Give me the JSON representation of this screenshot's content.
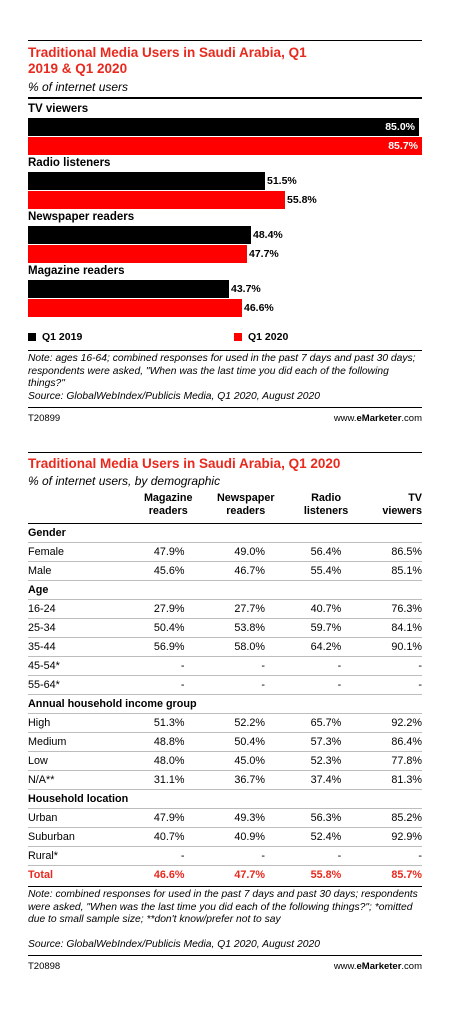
{
  "chart_data": [
    {
      "type": "bar",
      "title": "Traditional Media Users in Saudi Arabia, Q1 2019 & Q1 2020",
      "subtitle": "% of internet users",
      "categories": [
        "TV viewers",
        "Radio listeners",
        "Newspaper readers",
        "Magazine readers"
      ],
      "series": [
        {
          "name": "Q1 2019",
          "values": [
            85.0,
            51.5,
            48.4,
            43.7
          ],
          "labels": [
            "85.0%",
            "51.5%",
            "48.4%",
            "43.7%"
          ],
          "color": "#000000"
        },
        {
          "name": "Q1 2020",
          "values": [
            85.7,
            55.8,
            47.7,
            46.6
          ],
          "labels": [
            "85.7%",
            "55.8%",
            "47.7%",
            "46.6%"
          ],
          "color": "#ff0000"
        }
      ],
      "xlim": [
        0,
        85.7
      ],
      "legend": "bottom-left",
      "note": "Note: ages 16-64; combined responses for used in the past 7 days and past 30 days; respondents were asked, \"When was the last time you did each of the following things?\"",
      "source": "Source: GlobalWebIndex/Publicis Media, Q1 2020, August 2020",
      "id": "T20899",
      "brand_prefix": "www.",
      "brand_bold": "eMarketer",
      "brand_suffix": ".com"
    },
    {
      "type": "table",
      "title": "Traditional Media Users in Saudi Arabia, Q1 2020",
      "subtitle": "% of internet users, by demographic",
      "columns": [
        {
          "line1": "Magazine",
          "line2": "readers"
        },
        {
          "line1": "Newspaper",
          "line2": "readers"
        },
        {
          "line1": "Radio",
          "line2": "listeners"
        },
        {
          "line1": "TV",
          "line2": "viewers"
        }
      ],
      "rows": [
        {
          "label": "Gender",
          "group": true,
          "values": [
            "",
            "",
            "",
            ""
          ]
        },
        {
          "label": "Female",
          "values": [
            "47.9%",
            "49.0%",
            "56.4%",
            "86.5%"
          ]
        },
        {
          "label": "Male",
          "values": [
            "45.6%",
            "46.7%",
            "55.4%",
            "85.1%"
          ]
        },
        {
          "label": "Age",
          "group": true,
          "values": [
            "",
            "",
            "",
            ""
          ]
        },
        {
          "label": "16-24",
          "values": [
            "27.9%",
            "27.7%",
            "40.7%",
            "76.3%"
          ]
        },
        {
          "label": "25-34",
          "values": [
            "50.4%",
            "53.8%",
            "59.7%",
            "84.1%"
          ]
        },
        {
          "label": "35-44",
          "values": [
            "56.9%",
            "58.0%",
            "64.2%",
            "90.1%"
          ]
        },
        {
          "label": "45-54*",
          "values": [
            "-",
            "-",
            "-",
            "-"
          ]
        },
        {
          "label": "55-64*",
          "values": [
            "-",
            "-",
            "-",
            "-"
          ]
        },
        {
          "label": "Annual household income group",
          "group": true,
          "values": [
            "",
            "",
            "",
            ""
          ]
        },
        {
          "label": "High",
          "values": [
            "51.3%",
            "52.2%",
            "65.7%",
            "92.2%"
          ]
        },
        {
          "label": "Medium",
          "values": [
            "48.8%",
            "50.4%",
            "57.3%",
            "86.4%"
          ]
        },
        {
          "label": "Low",
          "values": [
            "48.0%",
            "45.0%",
            "52.3%",
            "77.8%"
          ]
        },
        {
          "label": "N/A**",
          "values": [
            "31.1%",
            "36.7%",
            "37.4%",
            "81.3%"
          ]
        },
        {
          "label": "Household location",
          "group": true,
          "values": [
            "",
            "",
            "",
            ""
          ]
        },
        {
          "label": "Urban",
          "values": [
            "47.9%",
            "49.3%",
            "56.3%",
            "85.2%"
          ]
        },
        {
          "label": "Suburban",
          "values": [
            "40.7%",
            "40.9%",
            "52.4%",
            "92.9%"
          ]
        },
        {
          "label": "Rural*",
          "values": [
            "-",
            "-",
            "-",
            "-"
          ]
        },
        {
          "label": "Total",
          "total": true,
          "values": [
            "46.6%",
            "47.7%",
            "55.8%",
            "85.7%"
          ]
        }
      ],
      "note": "Note: combined responses for used in the past 7 days and past 30 days; respondents were asked, \"When was the last time you did each of the following things?\"; *omitted due to small sample size; **don't know/prefer not to say",
      "source": "Source: GlobalWebIndex/Publicis Media, Q1 2020, August 2020",
      "id": "T20898",
      "brand_prefix": "www.",
      "brand_bold": "eMarketer",
      "brand_suffix": ".com"
    }
  ]
}
